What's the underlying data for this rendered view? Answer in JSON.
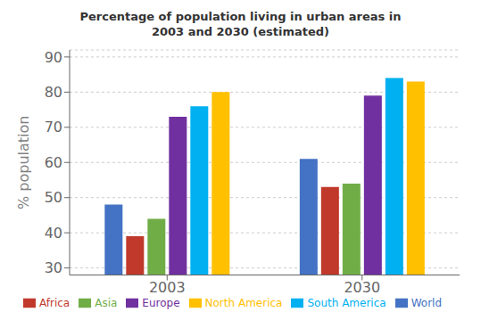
{
  "chart_data": {
    "type": "bar",
    "title": "Percentage of population living in urban areas in\n2003 and 2030 (estimated)",
    "ylabel": "% population",
    "categories": [
      "2003",
      "2030"
    ],
    "series": [
      {
        "name": "World",
        "color": "#4472C4",
        "values": [
          48,
          61
        ]
      },
      {
        "name": "Africa",
        "color": "#C0392B",
        "values": [
          39,
          53
        ]
      },
      {
        "name": "Asia",
        "color": "#70AD47",
        "values": [
          44,
          54
        ]
      },
      {
        "name": "Europe",
        "color": "#7030A0",
        "values": [
          73,
          79
        ]
      },
      {
        "name": "South America",
        "color": "#00B0F0",
        "values": [
          76,
          84
        ]
      },
      {
        "name": "North America",
        "color": "#FFC000",
        "values": [
          80,
          83
        ]
      }
    ],
    "ylim": [
      28,
      92
    ],
    "yticks": [
      30,
      40,
      50,
      60,
      70,
      80,
      90
    ],
    "grid": true,
    "legend": "bottom"
  }
}
